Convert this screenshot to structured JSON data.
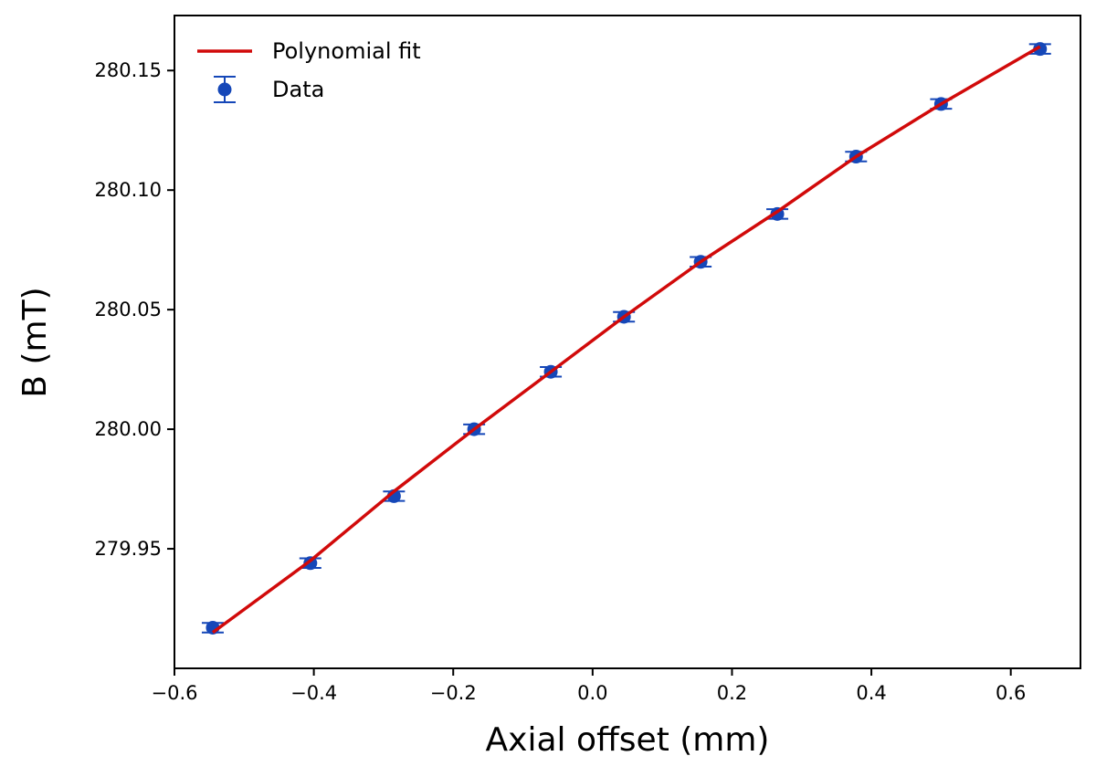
{
  "chart_data": {
    "type": "scatter",
    "xlabel": "Axial offset (mm)",
    "ylabel": "B (mT)",
    "xlim": [
      -0.6,
      0.7
    ],
    "ylim": [
      279.9,
      280.173
    ],
    "xticks": [
      -0.6,
      -0.4,
      -0.2,
      0.0,
      0.2,
      0.4,
      0.6
    ],
    "xtick_labels": [
      "−0.6",
      "−0.4",
      "−0.2",
      "0.0",
      "0.2",
      "0.4",
      "0.6"
    ],
    "yticks": [
      279.95,
      280.0,
      280.05,
      280.1,
      280.15
    ],
    "ytick_labels": [
      "279.95",
      "280.00",
      "280.05",
      "280.10",
      "280.15"
    ],
    "grid": false,
    "legend_position": "top-left",
    "series": [
      {
        "name": "Data",
        "kind": "errorbar",
        "color": "#1547b8",
        "x": [
          -0.545,
          -0.405,
          -0.285,
          -0.17,
          -0.06,
          0.045,
          0.155,
          0.265,
          0.378,
          0.5,
          0.642
        ],
        "y": [
          279.917,
          279.944,
          279.972,
          280.0,
          280.024,
          280.047,
          280.07,
          280.09,
          280.114,
          280.136,
          280.159
        ],
        "yerr": [
          0.002,
          0.002,
          0.002,
          0.002,
          0.002,
          0.002,
          0.002,
          0.002,
          0.002,
          0.002,
          0.002
        ]
      },
      {
        "name": "Polynomial fit",
        "kind": "line",
        "color": "#d10a0a",
        "x": [
          -0.545,
          -0.405,
          -0.285,
          -0.17,
          -0.06,
          0.045,
          0.155,
          0.265,
          0.378,
          0.5,
          0.642
        ],
        "y": [
          279.915,
          279.945,
          279.974,
          280.0,
          280.024,
          280.047,
          280.07,
          280.091,
          280.114,
          280.136,
          280.16
        ]
      }
    ]
  }
}
